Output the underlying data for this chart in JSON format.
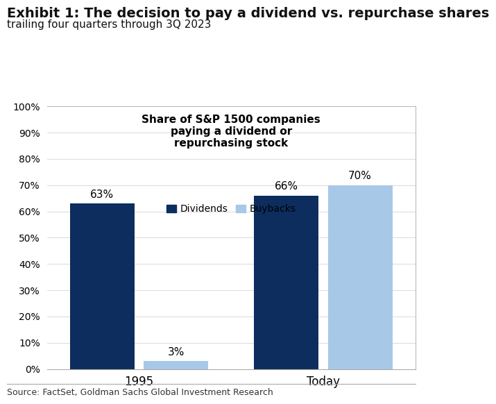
{
  "title_line1": "Exhibit 1: The decision to pay a dividend vs. repurchase shares",
  "title_line2": "trailing four quarters through 3Q 2023",
  "chart_title": "Share of S&P 1500 companies\npaying a dividend or\nrepurchasing stock",
  "groups": [
    "1995",
    "Today"
  ],
  "dividends": [
    63,
    66
  ],
  "buybacks": [
    3,
    70
  ],
  "dividend_color": "#0d2d5e",
  "buyback_color": "#a8c8e8",
  "ylim": [
    0,
    100
  ],
  "yticks": [
    0,
    10,
    20,
    30,
    40,
    50,
    60,
    70,
    80,
    90,
    100
  ],
  "ytick_labels": [
    "0%",
    "10%",
    "20%",
    "30%",
    "40%",
    "50%",
    "60%",
    "70%",
    "80%",
    "90%",
    "100%"
  ],
  "source": "Source: FactSet, Goldman Sachs Global Investment Research",
  "legend_labels": [
    "Dividends",
    "Buybacks"
  ],
  "background_color": "#ffffff",
  "title_fontsize": 14,
  "subtitle_fontsize": 11,
  "bar_label_fontsize": 11,
  "axis_tick_fontsize": 10,
  "legend_fontsize": 10,
  "chart_title_fontsize": 11,
  "source_fontsize": 9,
  "bar_width": 0.28
}
